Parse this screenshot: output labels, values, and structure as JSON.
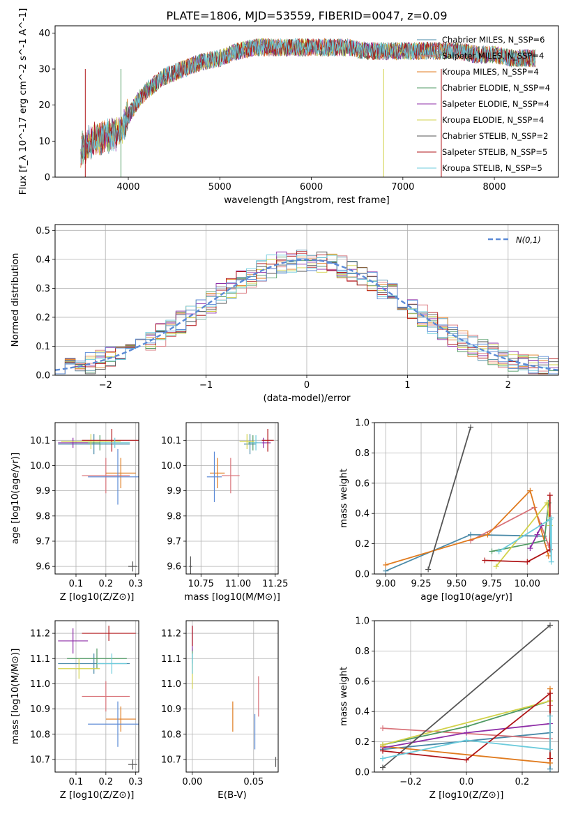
{
  "figure": {
    "title": "PLATE=1806, MJD=53559, FIBERID=0047, z=0.09"
  },
  "legend_entries": [
    {
      "label": "Chabrier MILES, N_SSP=6",
      "color": "#4a8aa8"
    },
    {
      "label": "Salpeter MILES, N_SSP=4",
      "color": "#d9737a"
    },
    {
      "label": "Kroupa MILES, N_SSP=4",
      "color": "#e07b1f"
    },
    {
      "label": "Chabrier ELODIE, N_SSP=4",
      "color": "#4f9a63"
    },
    {
      "label": "Salpeter ELODIE, N_SSP=4",
      "color": "#8e2ea7"
    },
    {
      "label": "Kroupa ELODIE, N_SSP=4",
      "color": "#d2d24a"
    },
    {
      "label": "Chabrier STELIB, N_SSP=2",
      "color": "#555555"
    },
    {
      "label": "Salpeter STELIB, N_SSP=5",
      "color": "#b01518"
    },
    {
      "label": "Kroupa STELIB, N_SSP=5",
      "color": "#6ccbdc"
    }
  ],
  "chart_data": [
    {
      "id": "spectrum",
      "type": "line",
      "title": "PLATE=1806, MJD=53559, FIBERID=0047, z=0.09",
      "xlabel": "wavelength [Angstrom, rest frame]",
      "ylabel": "Flux [f_λ 10^-17 erg cm^-2 s^-1 A^-1]",
      "xlim": [
        3200,
        8700
      ],
      "ylim": [
        0,
        42
      ],
      "xticks": [
        "4000",
        "5000",
        "6000",
        "7000",
        "8000"
      ],
      "yticks": [
        "0",
        "10",
        "20",
        "30",
        "40"
      ],
      "x": [
        3500,
        3600,
        3700,
        3800,
        3900,
        4000,
        4100,
        4200,
        4400,
        4600,
        4800,
        5000,
        5200,
        5400,
        5600,
        5800,
        6000,
        6200,
        6400,
        6600,
        6800,
        7000,
        7200,
        7400,
        7600,
        7800,
        8000,
        8200,
        8400
      ],
      "y": [
        8,
        10,
        11,
        12,
        12,
        17,
        21,
        24,
        28,
        30,
        32,
        33,
        35,
        36,
        36,
        36,
        36,
        36,
        36,
        35,
        35,
        35,
        35,
        35,
        35,
        34,
        34,
        33,
        33
      ],
      "dropouts": [
        3530,
        3920,
        6790,
        7420
      ],
      "grid": false
    },
    {
      "id": "residual-histogram",
      "type": "histogram",
      "xlabel": "(data-model)/error",
      "ylabel": "Normed distribution",
      "xlim": [
        -2.5,
        2.5
      ],
      "ylim": [
        0,
        0.52
      ],
      "xticks": [
        "−2",
        "−1",
        "0",
        "1",
        "2"
      ],
      "yticks": [
        "0.0",
        "0.1",
        "0.2",
        "0.3",
        "0.4",
        "0.5"
      ],
      "reference_curve": {
        "label": "N(0,1)",
        "mean": 0,
        "sigma": 1
      },
      "bin_width": 0.1,
      "grid": true
    },
    {
      "id": "age-vs-z",
      "type": "scatter",
      "xlabel": "Z [log10(Z/Z⊙)]",
      "ylabel": "age [log10(age/yr)]",
      "xlim": [
        0.03,
        0.31
      ],
      "ylim": [
        9.57,
        10.17
      ],
      "xticks": [
        "0.1",
        "0.2",
        "0.3"
      ],
      "yticks": [
        "9.6",
        "9.7",
        "9.8",
        "9.9",
        "10.0",
        "10.1"
      ],
      "points": [
        {
          "s": 0,
          "x": 0.16,
          "y": 10.085,
          "ex": 0.12,
          "ey": 0.04
        },
        {
          "s": 1,
          "x": 0.2,
          "y": 9.96,
          "ex": 0.08,
          "ey": 0.07
        },
        {
          "s": 2,
          "x": 0.25,
          "y": 9.97,
          "ex": 0.05,
          "ey": 0.06
        },
        {
          "s": 3,
          "x": 0.18,
          "y": 10.09,
          "ex": 0.1,
          "ey": 0.03
        },
        {
          "s": 4,
          "x": 0.09,
          "y": 10.09,
          "ex": 0.05,
          "ey": 0.02
        },
        {
          "s": 5,
          "x": 0.15,
          "y": 10.095,
          "ex": 0.1,
          "ey": 0.03
        },
        {
          "s": 6,
          "x": 0.29,
          "y": 9.6,
          "ex": 0.015,
          "ey": 0.02
        },
        {
          "s": 7,
          "x": 0.22,
          "y": 10.1,
          "ex": 0.1,
          "ey": 0.045
        },
        {
          "s": 8,
          "x": 0.23,
          "y": 10.09,
          "ex": 0.05,
          "ey": 0.02
        },
        {
          "s": 9,
          "x": 0.24,
          "y": 9.955,
          "ex": 0.1,
          "ey": 0.11
        }
      ],
      "grid": true
    },
    {
      "id": "age-vs-mass",
      "type": "scatter",
      "xlabel": "mass [log10(M/M⊙)]",
      "ylabel": "",
      "xlim": [
        10.65,
        11.27
      ],
      "ylim": [
        9.57,
        10.17
      ],
      "xticks": [
        "10.75",
        "11.00",
        "11.25"
      ],
      "yticks": [
        "9.6",
        "9.7",
        "9.8",
        "9.9",
        "10.0",
        "10.1"
      ],
      "points": [
        {
          "s": 0,
          "x": 11.08,
          "y": 10.085,
          "ex": 0.04,
          "ey": 0.04
        },
        {
          "s": 1,
          "x": 10.95,
          "y": 9.96,
          "ex": 0.06,
          "ey": 0.07
        },
        {
          "s": 2,
          "x": 10.86,
          "y": 9.97,
          "ex": 0.05,
          "ey": 0.06
        },
        {
          "s": 3,
          "x": 11.1,
          "y": 10.09,
          "ex": 0.03,
          "ey": 0.03
        },
        {
          "s": 4,
          "x": 11.17,
          "y": 10.09,
          "ex": 0.05,
          "ey": 0.02
        },
        {
          "s": 5,
          "x": 11.06,
          "y": 10.095,
          "ex": 0.05,
          "ey": 0.03
        },
        {
          "s": 6,
          "x": 10.68,
          "y": 9.6,
          "ex": 0.01,
          "ey": 0.04
        },
        {
          "s": 7,
          "x": 11.2,
          "y": 10.1,
          "ex": 0.04,
          "ey": 0.045
        },
        {
          "s": 8,
          "x": 11.12,
          "y": 10.09,
          "ex": 0.04,
          "ey": 0.03
        },
        {
          "s": 9,
          "x": 10.84,
          "y": 9.955,
          "ex": 0.05,
          "ey": 0.1
        }
      ],
      "grid": true
    },
    {
      "id": "weight-vs-age",
      "type": "line",
      "xlabel": "age [log10(age/yr)]",
      "ylabel": "mass weight",
      "xlim": [
        8.92,
        10.22
      ],
      "ylim": [
        0,
        1
      ],
      "xticks": [
        "9.00",
        "9.25",
        "9.50",
        "9.75",
        "10.00"
      ],
      "yticks": [
        "0.0",
        "0.2",
        "0.4",
        "0.6",
        "0.8",
        "1.0"
      ],
      "series": [
        {
          "s": 0,
          "x": [
            9.0,
            9.6,
            10.12
          ],
          "y": [
            0.02,
            0.26,
            0.25
          ]
        },
        {
          "s": 1,
          "x": [
            9.6,
            10.05,
            10.15
          ],
          "y": [
            0.22,
            0.44,
            0.19
          ]
        },
        {
          "s": 2,
          "x": [
            9.0,
            9.72,
            10.02,
            10.15
          ],
          "y": [
            0.06,
            0.26,
            0.55,
            0.12
          ]
        },
        {
          "s": 3,
          "x": [
            9.75,
            10.12,
            10.15
          ],
          "y": [
            0.15,
            0.22,
            0.47
          ]
        },
        {
          "s": 4,
          "x": [
            10.02,
            10.07,
            10.1
          ],
          "y": [
            0.17,
            0.26,
            0.32
          ]
        },
        {
          "s": 5,
          "x": [
            9.78,
            10.14,
            10.16
          ],
          "y": [
            0.05,
            0.47,
            0.32
          ]
        },
        {
          "s": 6,
          "x": [
            9.3,
            9.6
          ],
          "y": [
            0.03,
            0.97
          ]
        },
        {
          "s": 7,
          "x": [
            9.7,
            10.0,
            10.16,
            10.16
          ],
          "y": [
            0.09,
            0.08,
            0.16,
            0.52
          ]
        },
        {
          "s": 8,
          "x": [
            9.8,
            10.16,
            10.17,
            10.17
          ],
          "y": [
            0.15,
            0.36,
            0.08,
            0.37
          ]
        }
      ],
      "grid": true
    },
    {
      "id": "mass-vs-z",
      "type": "scatter",
      "xlabel": "Z [log10(Z/Z⊙)]",
      "ylabel": "mass [log10(M/M⊙)]",
      "xlim": [
        0.03,
        0.31
      ],
      "ylim": [
        10.65,
        11.25
      ],
      "xticks": [
        "0.1",
        "0.2",
        "0.3"
      ],
      "yticks": [
        "10.7",
        "10.8",
        "10.9",
        "11.0",
        "11.1",
        "11.2"
      ],
      "points": [
        {
          "s": 0,
          "x": 0.16,
          "y": 11.08,
          "ex": 0.12,
          "ey": 0.04
        },
        {
          "s": 1,
          "x": 0.2,
          "y": 10.95,
          "ex": 0.08,
          "ey": 0.06
        },
        {
          "s": 2,
          "x": 0.25,
          "y": 10.86,
          "ex": 0.05,
          "ey": 0.05
        },
        {
          "s": 3,
          "x": 0.17,
          "y": 11.1,
          "ex": 0.1,
          "ey": 0.04
        },
        {
          "s": 4,
          "x": 0.09,
          "y": 11.17,
          "ex": 0.05,
          "ey": 0.05
        },
        {
          "s": 5,
          "x": 0.11,
          "y": 11.06,
          "ex": 0.07,
          "ey": 0.04
        },
        {
          "s": 6,
          "x": 0.29,
          "y": 10.68,
          "ex": 0.015,
          "ey": 0.02
        },
        {
          "s": 7,
          "x": 0.21,
          "y": 11.2,
          "ex": 0.09,
          "ey": 0.03
        },
        {
          "s": 8,
          "x": 0.22,
          "y": 11.08,
          "ex": 0.05,
          "ey": 0.04
        },
        {
          "s": 9,
          "x": 0.24,
          "y": 10.84,
          "ex": 0.1,
          "ey": 0.09
        }
      ],
      "grid": true
    },
    {
      "id": "mass-vs-ebv",
      "type": "scatter",
      "xlabel": "E(B-V)",
      "ylabel": "",
      "xlim": [
        -0.005,
        0.07
      ],
      "ylim": [
        10.65,
        11.25
      ],
      "xticks": [
        "0.00",
        "0.05"
      ],
      "yticks": [
        "10.7",
        "10.8",
        "10.9",
        "11.0",
        "11.1",
        "11.2"
      ],
      "points": [
        {
          "s": 0,
          "x": 0.0,
          "y": 11.08,
          "ex": 0,
          "ey": 0.04
        },
        {
          "s": 1,
          "x": 0.054,
          "y": 10.95,
          "ex": 0,
          "ey": 0.08
        },
        {
          "s": 2,
          "x": 0.033,
          "y": 10.87,
          "ex": 0,
          "ey": 0.06
        },
        {
          "s": 3,
          "x": 0.0,
          "y": 11.1,
          "ex": 0,
          "ey": 0.04
        },
        {
          "s": 4,
          "x": 0.0,
          "y": 11.18,
          "ex": 0,
          "ey": 0.05
        },
        {
          "s": 5,
          "x": 0.0,
          "y": 11.03,
          "ex": 0,
          "ey": 0.05
        },
        {
          "s": 6,
          "x": 0.068,
          "y": 10.69,
          "ex": 0,
          "ey": 0.02
        },
        {
          "s": 7,
          "x": 0.0,
          "y": 11.19,
          "ex": 0,
          "ey": 0.04
        },
        {
          "s": 8,
          "x": 0.0,
          "y": 11.08,
          "ex": 0,
          "ey": 0.04
        },
        {
          "s": 9,
          "x": 0.051,
          "y": 10.81,
          "ex": 0,
          "ey": 0.07
        }
      ],
      "grid": true
    },
    {
      "id": "weight-vs-z",
      "type": "line",
      "xlabel": "Z [log10(Z/Z⊙)]",
      "ylabel": "mass weight",
      "xlim": [
        -0.33,
        0.33
      ],
      "ylim": [
        0,
        1
      ],
      "xticks": [
        "−0.2",
        "0.0",
        "0.2"
      ],
      "yticks": [
        "0.0",
        "0.2",
        "0.4",
        "0.6",
        "0.8",
        "1.0"
      ],
      "series": [
        {
          "s": 0,
          "x": [
            -0.3,
            0.3,
            0.3
          ],
          "y": [
            0.15,
            0.26,
            0.02
          ]
        },
        {
          "s": 1,
          "x": [
            -0.3,
            0.3,
            0.3
          ],
          "y": [
            0.29,
            0.22,
            0.44
          ]
        },
        {
          "s": 2,
          "x": [
            -0.3,
            0.3,
            0.3
          ],
          "y": [
            0.17,
            0.06,
            0.55
          ]
        },
        {
          "s": 3,
          "x": [
            -0.3,
            0.0,
            0.3
          ],
          "y": [
            0.18,
            0.3,
            0.47
          ]
        },
        {
          "s": 4,
          "x": [
            -0.3,
            0.0,
            0.3
          ],
          "y": [
            0.16,
            0.26,
            0.32
          ]
        },
        {
          "s": 5,
          "x": [
            -0.3,
            0.3
          ],
          "y": [
            0.18,
            0.47
          ]
        },
        {
          "s": 6,
          "x": [
            -0.3,
            0.3
          ],
          "y": [
            0.03,
            0.97
          ]
        },
        {
          "s": 7,
          "x": [
            -0.3,
            0.0,
            0.3,
            0.3
          ],
          "y": [
            0.14,
            0.08,
            0.52,
            0.09
          ]
        },
        {
          "s": 8,
          "x": [
            -0.3,
            0.0,
            0.3,
            0.3
          ],
          "y": [
            0.09,
            0.21,
            0.15,
            0.37
          ]
        }
      ],
      "grid": true
    }
  ]
}
